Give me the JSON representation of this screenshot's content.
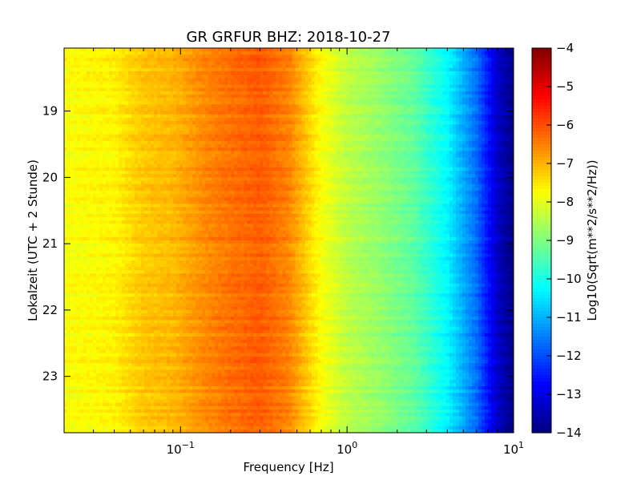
{
  "chart_data": {
    "type": "heatmap",
    "title": "GR GRFUR BHZ: 2018-10-27",
    "xlabel": "Frequency [Hz]",
    "ylabel": "Lokalzeit (UTC + 2 Stunde)",
    "colorbar_label": "Log10(Sqrt(m**2/s**2/Hz))",
    "x_scale": "log",
    "xlim": [
      0.02,
      10
    ],
    "x_ticks": [
      {
        "value": 0.1,
        "base": "10",
        "exp": "−1"
      },
      {
        "value": 1,
        "base": "10",
        "exp": "0"
      },
      {
        "value": 10,
        "base": "10",
        "exp": "1"
      }
    ],
    "ylim_hours": [
      18.05,
      23.85
    ],
    "y_inverted": true,
    "y_ticks": [
      {
        "value": 19,
        "label": "19"
      },
      {
        "value": 20,
        "label": "20"
      },
      {
        "value": 21,
        "label": "21"
      },
      {
        "value": 22,
        "label": "22"
      },
      {
        "value": 23,
        "label": "23"
      }
    ],
    "colorbar": {
      "colormap": "jet",
      "vmin": -14,
      "vmax": -4,
      "ticks": [
        {
          "value": -4,
          "label": "−4"
        },
        {
          "value": -5,
          "label": "−5"
        },
        {
          "value": -6,
          "label": "−6"
        },
        {
          "value": -7,
          "label": "−7"
        },
        {
          "value": -8,
          "label": "−8"
        },
        {
          "value": -9,
          "label": "−9"
        },
        {
          "value": -10,
          "label": "−10"
        },
        {
          "value": -11,
          "label": "−11"
        },
        {
          "value": -12,
          "label": "−12"
        },
        {
          "value": -13,
          "label": "−13"
        },
        {
          "value": -14,
          "label": "−14"
        }
      ]
    },
    "spectrum_profile": {
      "frequency_hz": [
        0.02,
        0.04,
        0.06,
        0.09,
        0.14,
        0.2,
        0.3,
        0.45,
        0.7,
        1.0,
        1.5,
        2.5,
        4.0,
        6.0,
        8.0,
        10.0
      ],
      "log10_amplitude": [
        -7.8,
        -7.65,
        -7.2,
        -7.05,
        -6.6,
        -6.35,
        -6.15,
        -6.55,
        -7.8,
        -8.4,
        -8.75,
        -9.3,
        -10.3,
        -11.7,
        -13.3,
        -13.95
      ]
    },
    "grid": false
  }
}
